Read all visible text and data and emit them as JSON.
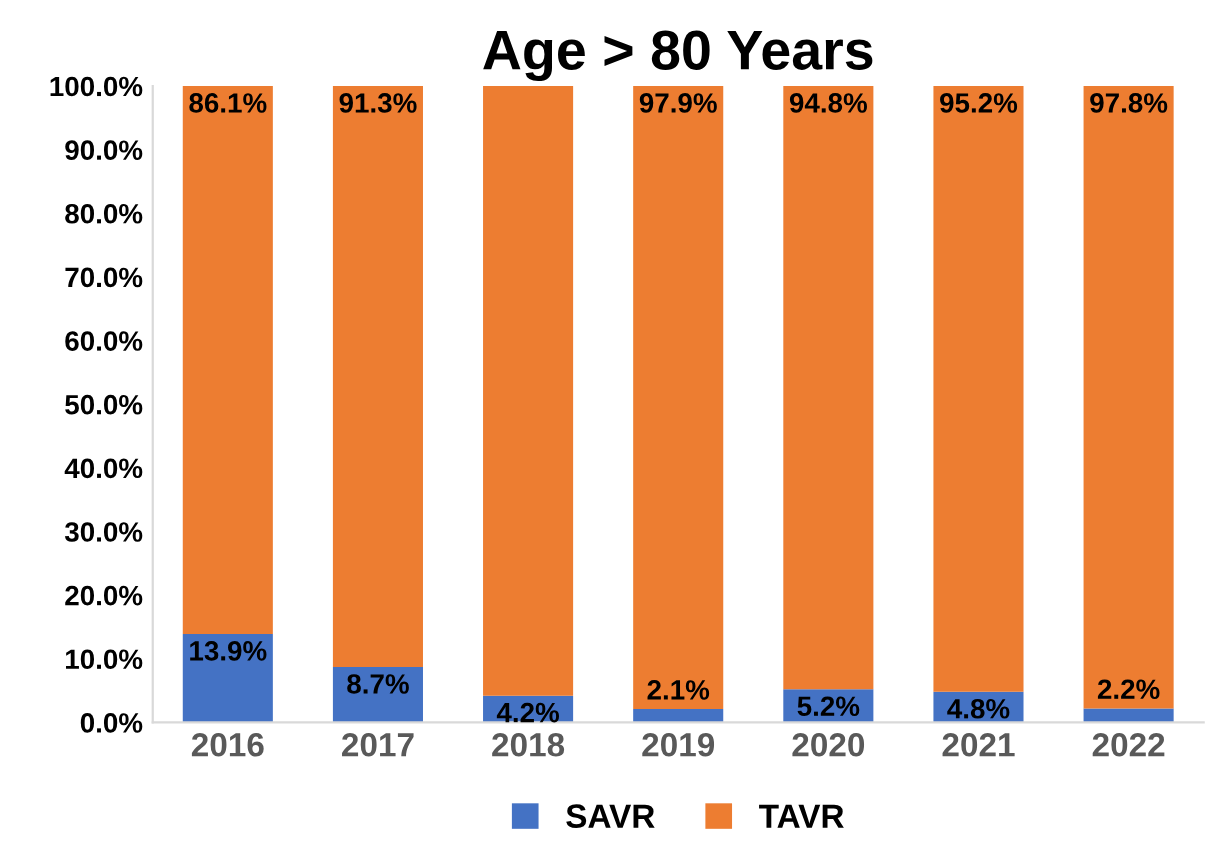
{
  "chart_data": {
    "type": "bar",
    "title": "Age > 80 Years",
    "stacked": true,
    "legend": "bottom",
    "grid": false,
    "categories": [
      "2016",
      "2017",
      "2018",
      "2019",
      "2020",
      "2021",
      "2022"
    ],
    "series": [
      {
        "name": "SAVR",
        "color": "#4472c4",
        "values": [
          13.9,
          8.7,
          4.2,
          2.1,
          5.2,
          4.8,
          2.2
        ],
        "value_labels": [
          "13.9%",
          "8.7%",
          "4.2%",
          "2.1%",
          "5.2%",
          "4.8%",
          "2.2%"
        ]
      },
      {
        "name": "TAVR",
        "color": "#ed7d31",
        "values": [
          86.1,
          91.3,
          95.8,
          97.9,
          94.8,
          95.2,
          97.8
        ],
        "value_labels": [
          "86.1%",
          "91.3%",
          null,
          "97.9%",
          "94.8%",
          "95.2%",
          "97.8%"
        ]
      }
    ],
    "ylim": [
      0,
      100
    ],
    "yticks": [
      {
        "value": 0,
        "label": "0.0%"
      },
      {
        "value": 10,
        "label": "10.0%"
      },
      {
        "value": 20,
        "label": "20.0%"
      },
      {
        "value": 30,
        "label": "30.0%"
      },
      {
        "value": 40,
        "label": "40.0%"
      },
      {
        "value": 50,
        "label": "50.0%"
      },
      {
        "value": 60,
        "label": "60.0%"
      },
      {
        "value": 70,
        "label": "70.0%"
      },
      {
        "value": 80,
        "label": "80.0%"
      },
      {
        "value": 90,
        "label": "90.0%"
      },
      {
        "value": 100,
        "label": "100.0%"
      }
    ]
  }
}
